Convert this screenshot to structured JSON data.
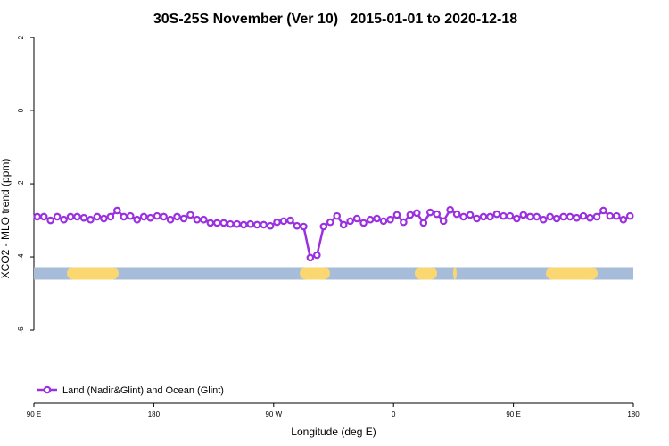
{
  "chart_data": {
    "type": "line",
    "title": "30S-25S November (Ver 10)   2015-01-01 to 2020-12-18",
    "x_label": "Longitude (deg E)",
    "y_label": "XCO2 - MLO trend (ppm)",
    "xlim": [
      90,
      540
    ],
    "ylim": [
      -8,
      2.1
    ],
    "xticks": [
      {
        "value": 90,
        "label": "90 E"
      },
      {
        "value": 180,
        "label": "180"
      },
      {
        "value": 270,
        "label": "90 W"
      },
      {
        "value": 360,
        "label": "0"
      },
      {
        "value": 450,
        "label": "90 E"
      },
      {
        "value": 540,
        "label": "180"
      }
    ],
    "yticks": [
      -6,
      -4,
      -2,
      0,
      2
    ],
    "legend": "bottom-left",
    "surface_band": {
      "y": -4.45,
      "ocean_color": "#a6bcd9",
      "land_color": "#fad771",
      "land": [
        [
          114.8,
          153.6
        ],
        [
          289.6,
          312.3
        ],
        [
          375.9,
          392.7
        ],
        [
          404.7,
          407.4
        ],
        [
          474.4,
          513.2
        ]
      ]
    },
    "x": [
      92.5,
      97.5,
      102.5,
      107.5,
      112.5,
      117.5,
      122.5,
      127.5,
      132.5,
      137.5,
      142.5,
      147.5,
      152.5,
      157.5,
      162.5,
      167.5,
      172.5,
      177.5,
      182.5,
      187.5,
      192.5,
      197.5,
      202.5,
      207.5,
      212.5,
      217.5,
      222.5,
      227.5,
      232.5,
      237.5,
      242.5,
      247.5,
      252.5,
      257.5,
      262.5,
      267.5,
      272.5,
      277.5,
      282.5,
      287.5,
      292.5,
      297.5,
      302.5,
      307.5,
      312.5,
      317.5,
      322.5,
      327.5,
      332.5,
      337.5,
      342.5,
      347.5,
      352.5,
      357.5,
      362.5,
      367.5,
      372.5,
      377.5,
      382.5,
      387.5,
      392.5,
      397.5,
      402.5,
      407.5,
      412.5,
      417.5,
      422.5,
      427.5,
      432.5,
      437.5,
      442.5,
      447.5,
      452.5,
      457.5,
      462.5,
      467.5,
      472.5,
      477.5,
      482.5,
      487.5,
      492.5,
      497.5,
      502.5,
      507.5,
      512.5,
      517.5,
      522.5,
      527.5,
      532.5,
      537.5
    ],
    "series": [
      {
        "name": "Land (Nadir&Glint) and Ocean (Glint)",
        "color": "#9b30e0",
        "values": [
          -2.9,
          -2.9,
          -3.0,
          -2.9,
          -2.98,
          -2.9,
          -2.9,
          -2.93,
          -2.98,
          -2.9,
          -2.95,
          -2.9,
          -2.73,
          -2.9,
          -2.88,
          -2.98,
          -2.9,
          -2.93,
          -2.88,
          -2.9,
          -2.98,
          -2.9,
          -2.95,
          -2.85,
          -2.98,
          -2.98,
          -3.07,
          -3.07,
          -3.07,
          -3.1,
          -3.1,
          -3.12,
          -3.1,
          -3.12,
          -3.12,
          -3.15,
          -3.05,
          -3.02,
          -3.0,
          -3.15,
          -3.17,
          -4.02,
          -3.95,
          -3.17,
          -3.05,
          -2.88,
          -3.12,
          -3.02,
          -2.95,
          -3.07,
          -2.98,
          -2.95,
          -3.02,
          -2.98,
          -2.85,
          -3.05,
          -2.85,
          -2.8,
          -3.07,
          -2.78,
          -2.83,
          -3.02,
          -2.71,
          -2.83,
          -2.9,
          -2.85,
          -2.95,
          -2.9,
          -2.9,
          -2.83,
          -2.88,
          -2.88,
          -2.95,
          -2.85,
          -2.9,
          -2.9,
          -2.98,
          -2.9,
          -2.95,
          -2.9,
          -2.9,
          -2.93,
          -2.88,
          -2.93,
          -2.9,
          -2.73,
          -2.88,
          -2.88,
          -2.98,
          -2.88
        ]
      }
    ]
  }
}
